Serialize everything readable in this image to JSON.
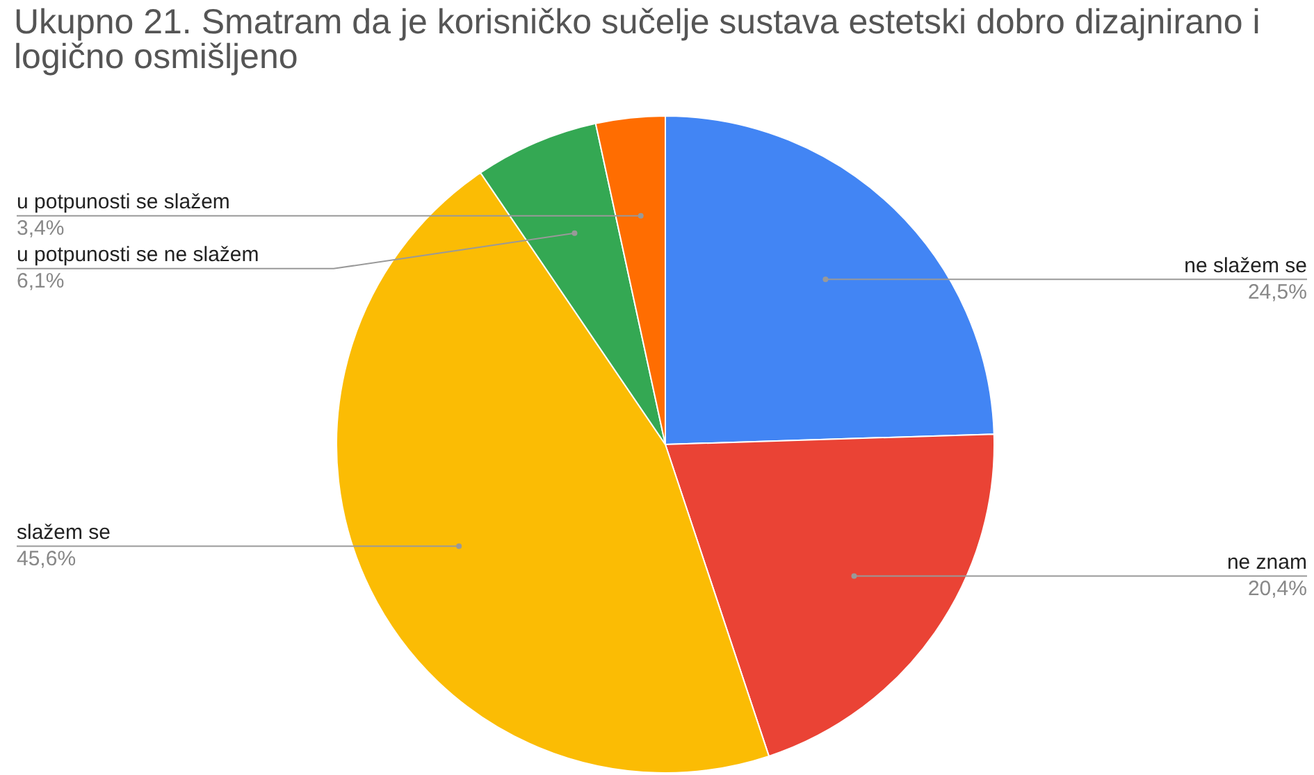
{
  "chart_data": {
    "type": "pie",
    "title": "Ukupno 21. Smatram da je korisničko sučelje sustava estetski dobro dizajnirano i logično osmišljeno",
    "categories": [
      "ne slažem se",
      "ne znam",
      "slažem se",
      "u potpunosti se ne slažem",
      "u potpunosti se slažem"
    ],
    "values": [
      24.5,
      20.4,
      45.6,
      6.1,
      3.4
    ],
    "colors": [
      "#4285f4",
      "#ea4335",
      "#fbbc04",
      "#34a853",
      "#ff6d01"
    ],
    "value_labels": [
      "24,5%",
      "20,4%",
      "45,6%",
      "6,1%",
      "3,4%"
    ],
    "legend": false
  }
}
